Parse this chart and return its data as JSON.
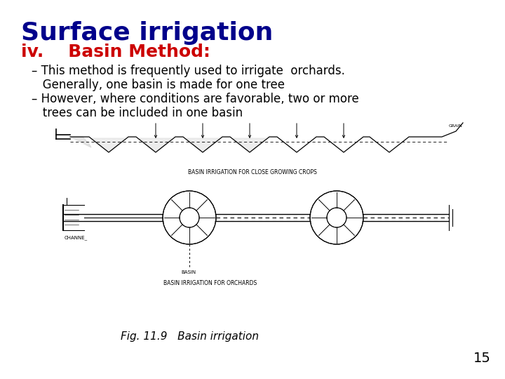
{
  "title": "Surface irrigation",
  "title_color": "#00008B",
  "title_fontsize": 26,
  "heading_iv": "iv.",
  "heading_basin": "    Basin Method:",
  "heading_color": "#CC0000",
  "heading_fontsize": 18,
  "bullet1_line1": "– This method is frequently used to irrigate  orchards.",
  "bullet1_line2": "   Generally, one basin is made for one tree",
  "bullet2_line1": "– However, where conditions are favorable, two or more",
  "bullet2_line2": "   trees can be included in one basin",
  "bullet_fontsize": 12,
  "bullet_color": "#000000",
  "fig_caption": "Fig. 11.9   Basin irrigation",
  "fig_caption_fontsize": 11,
  "page_number": "15",
  "page_number_fontsize": 14,
  "background_color": "#FFFFFF",
  "caption1": "BASIN IRRIGATION FOR CLOSE GROWING CROPS",
  "caption2": "BASIN IRRIGATION FOR ORCHARDS",
  "label_channel": "CHANNE_",
  "label_basin": "BASIN"
}
